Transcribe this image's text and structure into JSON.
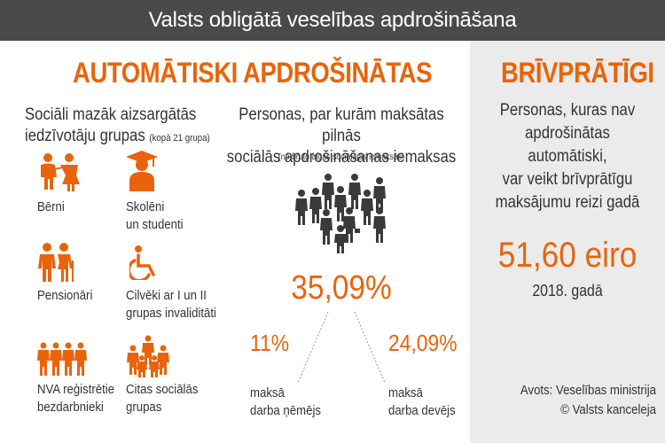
{
  "header": {
    "title": "Valsts obligātā veselības apdrošināšana"
  },
  "left": {
    "title": "AUTOMĀTISKI APDROŠINĀTAS",
    "groups": {
      "title_line1": "Sociāli mazāk aizsargātās",
      "title_line2": "iedzīvotāju grupas",
      "title_note": "(kopā 21 grupa)",
      "items": [
        {
          "icon": "children-icon",
          "line1": "Bērni",
          "line2": ""
        },
        {
          "icon": "student-icon",
          "line1": "Skolēni",
          "line2": "un studenti"
        },
        {
          "icon": "pensioners-icon",
          "line1": "Pensionāri",
          "line2": ""
        },
        {
          "icon": "wheelchair-icon",
          "line1": "Cilvēki ar I un II",
          "line2": "grupas invaliditāti"
        },
        {
          "icon": "unemployed-icon",
          "line1": "NVA reģistrētie",
          "line2": "bezdarbnieki"
        },
        {
          "icon": "social-groups-icon",
          "line1": "Citas sociālās",
          "line2": "grupas"
        }
      ]
    },
    "contributions": {
      "title_line1": "Personas, par kurām maksātas pilnās",
      "title_line2": "sociālās apdrošināšanas iemaksas",
      "note": "(no bruto algas sociālajās iemaksās)",
      "total": "35,09%",
      "employee": {
        "pct": "11%",
        "line1": "maksā",
        "line2": "darba ņēmējs"
      },
      "employer": {
        "pct": "24,09%",
        "line1": "maksā",
        "line2": "darba devējs"
      }
    }
  },
  "right": {
    "title": "BRĪVPRĀTĪGI",
    "desc_line1": "Personas, kuras nav",
    "desc_line2": "apdrošinātas automātiski,",
    "desc_line3": "var veikt brīvprātīgu",
    "desc_line4": "maksājumu reizi gadā",
    "amount": "51,60 eiro",
    "year": "2018. gadā",
    "source_line1": "Avots: Veselības ministrija",
    "source_line2": "© Valsts kanceleja"
  },
  "colors": {
    "accent": "#e8640c",
    "header_bg": "#4a4a4a",
    "panel_bg": "#ebebeb",
    "crowd": "#3a3a3a"
  }
}
